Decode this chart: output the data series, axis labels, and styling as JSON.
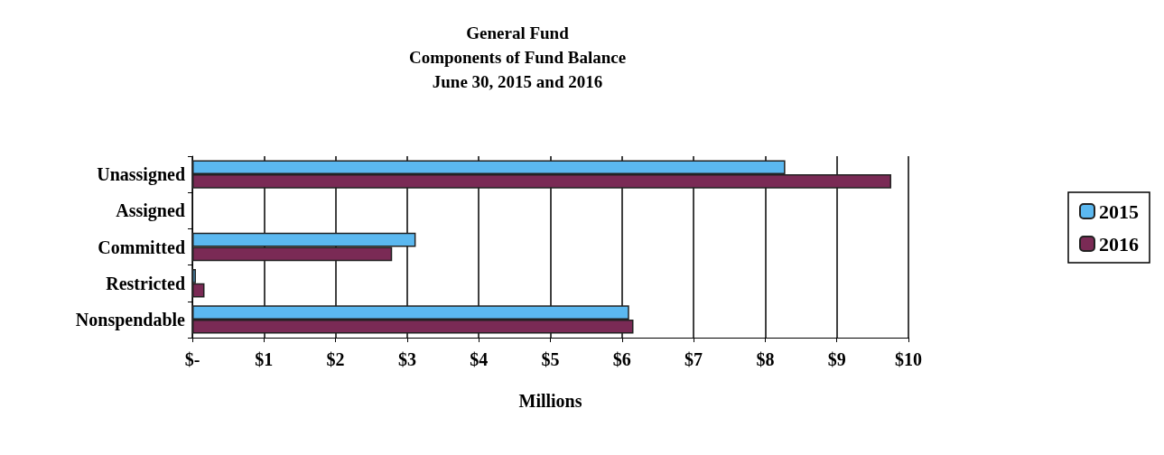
{
  "chart_data": {
    "type": "bar",
    "orientation": "horizontal",
    "title": "General Fund\nComponents of Fund Balance\nJune 30, 2015 and 2016",
    "xlabel": "Millions",
    "categories": [
      "Unassigned",
      "Assigned",
      "Committed",
      "Restricted",
      "Nonspendable"
    ],
    "series": [
      {
        "name": "2015",
        "color": "#5bb8f0",
        "values": [
          8.28,
          0,
          3.12,
          0.05,
          6.1
        ]
      },
      {
        "name": "2016",
        "color": "#7a2a55",
        "values": [
          9.76,
          0,
          2.79,
          0.17,
          6.16
        ]
      }
    ],
    "xlim": [
      0,
      10
    ],
    "xticks": [
      {
        "value": 0,
        "label": "$-"
      },
      {
        "value": 1,
        "label": "$1"
      },
      {
        "value": 2,
        "label": "$2"
      },
      {
        "value": 3,
        "label": "$3"
      },
      {
        "value": 4,
        "label": "$4"
      },
      {
        "value": 5,
        "label": "$5"
      },
      {
        "value": 6,
        "label": "$6"
      },
      {
        "value": 7,
        "label": "$7"
      },
      {
        "value": 8,
        "label": "$8"
      },
      {
        "value": 9,
        "label": "$9"
      },
      {
        "value": 10,
        "label": "$10"
      }
    ],
    "grid": "x",
    "legend": "right"
  }
}
